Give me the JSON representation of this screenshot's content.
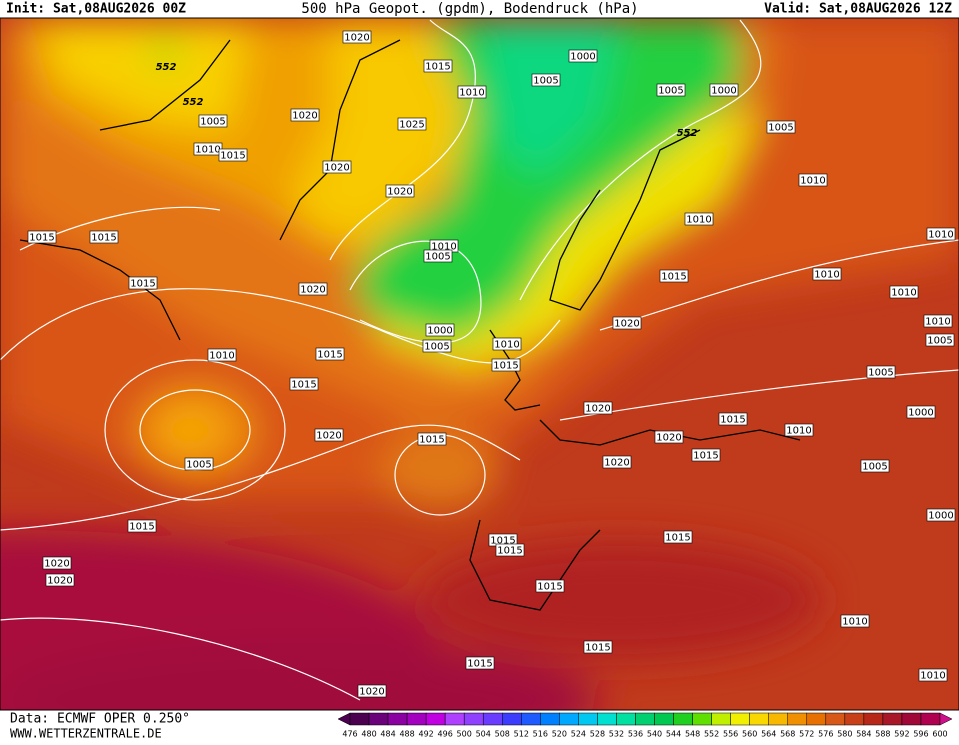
{
  "header": {
    "init": "Init: Sat,08AUG2026 00Z",
    "title": "500 hPa Geopot. (gpdm), Bodendruck (hPa)",
    "valid": "Valid: Sat,08AUG2026 12Z"
  },
  "footer": {
    "source": "Data: ECMWF OPER 0.250°",
    "website": "WWW.WETTERZENTRALE.DE"
  },
  "isobar_labels": [
    "1020",
    "1015",
    "1010",
    "1005",
    "1000",
    "1005",
    "1000",
    "1005",
    "1020",
    "1025",
    "1005",
    "1010",
    "1015",
    "1020",
    "1020",
    "1010",
    "1010",
    "1015",
    "1015",
    "1010",
    "1005",
    "1010",
    "1015",
    "1010",
    "1015",
    "1020",
    "1010",
    "1020",
    "1000",
    "1005",
    "1010",
    "1015",
    "1010",
    "1010",
    "1005",
    "1015",
    "1015",
    "1005",
    "1020",
    "1000",
    "1015",
    "1010",
    "1020",
    "1015",
    "1020",
    "1005",
    "1015",
    "1020",
    "1005",
    "1015",
    "1015",
    "1015",
    "1015",
    "1000",
    "1020",
    "1020",
    "1015",
    "1010",
    "1015",
    "1015",
    "1010",
    "1020"
  ],
  "contour_labels": [
    "552",
    "552",
    "552"
  ],
  "scale": {
    "labels": [
      476,
      480,
      484,
      488,
      492,
      496,
      500,
      504,
      508,
      512,
      516,
      520,
      524,
      528,
      532,
      536,
      540,
      544,
      548,
      552,
      556,
      560,
      564,
      568,
      572,
      576,
      580,
      584,
      588,
      592,
      596,
      600
    ],
    "colors": [
      "#4b0050",
      "#6a007a",
      "#8a00a0",
      "#a300c0",
      "#c000e0",
      "#b040ff",
      "#9040ff",
      "#6a3cff",
      "#3c3cff",
      "#1e5aff",
      "#0080ff",
      "#00a8ff",
      "#00c8f0",
      "#00e0d0",
      "#00e0a0",
      "#00d070",
      "#00c850",
      "#20d020",
      "#60e000",
      "#c0f000",
      "#f0f000",
      "#f8d800",
      "#f8b800",
      "#f09000",
      "#e87000",
      "#d85818",
      "#c84018",
      "#b82818",
      "#a81828",
      "#a00838",
      "#b00050"
    ]
  }
}
